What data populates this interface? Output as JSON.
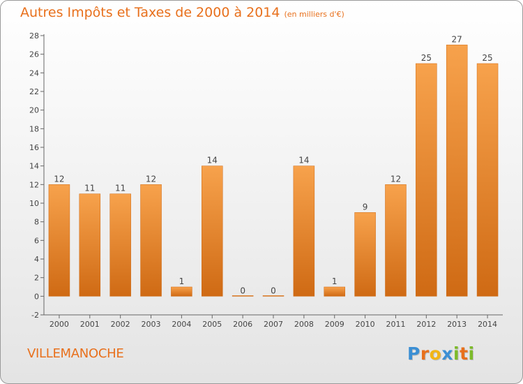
{
  "title": "Autres Impôts et Taxes de 2000 à 2014",
  "unit_note": "(en milliers d'€)",
  "commune": "VILLEMANOCHE",
  "logo": {
    "letters": [
      "P",
      "r",
      "o",
      "x",
      "i",
      "t",
      "i"
    ],
    "colors": [
      "#3b8fd4",
      "#e8701c",
      "#f2b516",
      "#3b8fd4",
      "#7dbb2a",
      "#e8701c",
      "#7dbb2a"
    ]
  },
  "colors": {
    "accent": "#e8701c",
    "bar_top": "#f7a24c",
    "bar_bottom": "#cf6a14"
  },
  "chart_data": {
    "type": "bar",
    "categories": [
      "2000",
      "2001",
      "2002",
      "2003",
      "2004",
      "2005",
      "2006",
      "2007",
      "2008",
      "2009",
      "2010",
      "2011",
      "2012",
      "2013",
      "2014"
    ],
    "values": [
      12,
      11,
      11,
      12,
      1,
      14,
      0,
      0,
      14,
      1,
      9,
      12,
      25,
      27,
      25
    ],
    "data_labels": [
      "12",
      "11",
      "11",
      "12",
      "1",
      "14",
      "0",
      "0",
      "14",
      "1",
      "9",
      "12",
      "25",
      "27",
      "25"
    ],
    "yticks": [
      "-2",
      "0",
      "2",
      "4",
      "6",
      "8",
      "10",
      "12",
      "14",
      "16",
      "18",
      "20",
      "22",
      "24",
      "26",
      "28"
    ],
    "ylim": [
      -2,
      28
    ],
    "grid": false
  }
}
